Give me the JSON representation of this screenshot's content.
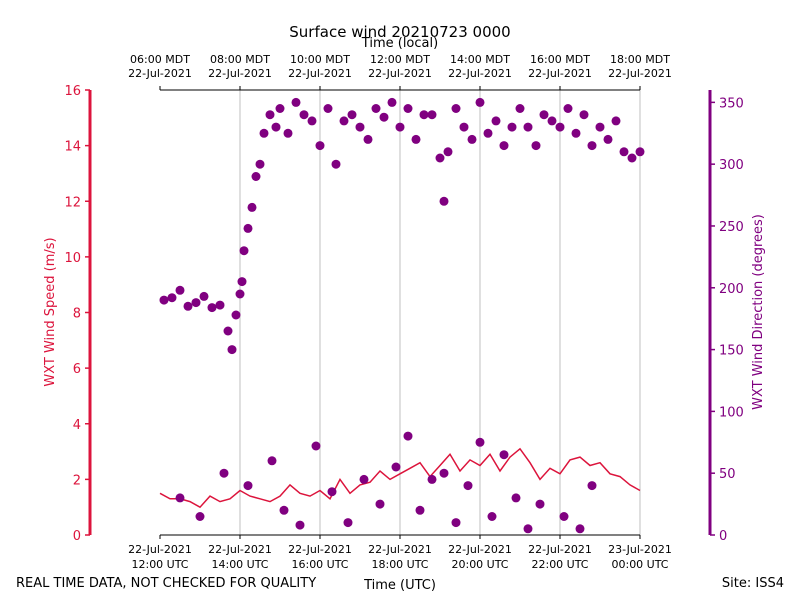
{
  "chart_data": {
    "type": "line+scatter",
    "title": "Surface wind 20210723 0000",
    "top_axis_label": "Time (local)",
    "xlabel": "Time (UTC)",
    "ylabel_left": "WXT Wind Speed (m/s)",
    "ylabel_right": "WXT Wind Direction (degrees)",
    "footer_left": "REAL TIME DATA, NOT CHECKED FOR QUALITY",
    "footer_right": "Site: ISS4",
    "xlim_hours_utc": [
      12,
      24
    ],
    "ylim_left": [
      0,
      16
    ],
    "ylim_right": [
      0,
      360
    ],
    "left_ticks": [
      "0",
      "2",
      "4",
      "6",
      "8",
      "10",
      "12",
      "14",
      "16"
    ],
    "right_ticks": [
      "0",
      "50",
      "100",
      "150",
      "200",
      "250",
      "300",
      "350"
    ],
    "bottom_ticks": [
      {
        "line1": "22-Jul-2021",
        "line2": "12:00 UTC"
      },
      {
        "line1": "22-Jul-2021",
        "line2": "14:00 UTC"
      },
      {
        "line1": "22-Jul-2021",
        "line2": "16:00 UTC"
      },
      {
        "line1": "22-Jul-2021",
        "line2": "18:00 UTC"
      },
      {
        "line1": "22-Jul-2021",
        "line2": "20:00 UTC"
      },
      {
        "line1": "22-Jul-2021",
        "line2": "22:00 UTC"
      },
      {
        "line1": "23-Jul-2021",
        "line2": "00:00 UTC"
      }
    ],
    "top_ticks": [
      {
        "line1": "06:00 MDT",
        "line2": "22-Jul-2021"
      },
      {
        "line1": "08:00 MDT",
        "line2": "22-Jul-2021"
      },
      {
        "line1": "10:00 MDT",
        "line2": "22-Jul-2021"
      },
      {
        "line1": "12:00 MDT",
        "line2": "22-Jul-2021"
      },
      {
        "line1": "14:00 MDT",
        "line2": "22-Jul-2021"
      },
      {
        "line1": "16:00 MDT",
        "line2": "22-Jul-2021"
      },
      {
        "line1": "18:00 MDT",
        "line2": "22-Jul-2021"
      }
    ],
    "colors": {
      "speed": "#dc143c",
      "direction": "#800080",
      "grid": "#b0b0b0"
    },
    "series": [
      {
        "name": "WXT Wind Speed",
        "kind": "line",
        "axis": "left",
        "x_hours_utc": [
          12.0,
          12.25,
          12.5,
          12.75,
          13.0,
          13.25,
          13.5,
          13.75,
          14.0,
          14.25,
          14.5,
          14.75,
          15.0,
          15.25,
          15.5,
          15.75,
          16.0,
          16.25,
          16.5,
          16.75,
          17.0,
          17.25,
          17.5,
          17.75,
          18.0,
          18.25,
          18.5,
          18.75,
          19.0,
          19.25,
          19.5,
          19.75,
          20.0,
          20.25,
          20.5,
          20.75,
          21.0,
          21.25,
          21.5,
          21.75,
          22.0,
          22.25,
          22.5,
          22.75,
          23.0,
          23.25,
          23.5,
          23.75,
          24.0
        ],
        "values": [
          1.5,
          1.3,
          1.3,
          1.2,
          1.0,
          1.4,
          1.2,
          1.3,
          1.6,
          1.4,
          1.3,
          1.2,
          1.4,
          1.8,
          1.5,
          1.4,
          1.6,
          1.3,
          2.0,
          1.5,
          1.8,
          1.9,
          2.3,
          2.0,
          2.2,
          2.4,
          2.6,
          2.1,
          2.5,
          2.9,
          2.3,
          2.7,
          2.5,
          2.9,
          2.3,
          2.8,
          3.1,
          2.6,
          2.0,
          2.4,
          2.2,
          2.7,
          2.8,
          2.5,
          2.6,
          2.2,
          2.1,
          1.8,
          1.6
        ]
      },
      {
        "name": "WXT Wind Direction",
        "kind": "scatter",
        "axis": "right",
        "points": [
          [
            12.1,
            190
          ],
          [
            12.3,
            192
          ],
          [
            12.5,
            198
          ],
          [
            12.7,
            185
          ],
          [
            12.9,
            188
          ],
          [
            13.1,
            193
          ],
          [
            13.3,
            184
          ],
          [
            13.5,
            186
          ],
          [
            13.7,
            165
          ],
          [
            13.8,
            150
          ],
          [
            13.9,
            178
          ],
          [
            14.0,
            195
          ],
          [
            14.05,
            205
          ],
          [
            14.1,
            230
          ],
          [
            14.2,
            248
          ],
          [
            14.3,
            265
          ],
          [
            14.4,
            290
          ],
          [
            14.5,
            300
          ],
          [
            14.6,
            325
          ],
          [
            14.75,
            340
          ],
          [
            14.9,
            330
          ],
          [
            15.0,
            345
          ],
          [
            15.2,
            325
          ],
          [
            15.4,
            350
          ],
          [
            15.6,
            340
          ],
          [
            15.8,
            335
          ],
          [
            16.0,
            315
          ],
          [
            16.2,
            345
          ],
          [
            16.4,
            300
          ],
          [
            16.6,
            335
          ],
          [
            16.8,
            340
          ],
          [
            17.0,
            330
          ],
          [
            17.2,
            320
          ],
          [
            17.4,
            345
          ],
          [
            17.6,
            338
          ],
          [
            17.8,
            350
          ],
          [
            18.0,
            330
          ],
          [
            18.2,
            345
          ],
          [
            18.4,
            320
          ],
          [
            18.6,
            340
          ],
          [
            18.8,
            340
          ],
          [
            19.0,
            305
          ],
          [
            19.1,
            270
          ],
          [
            19.2,
            310
          ],
          [
            19.4,
            345
          ],
          [
            19.6,
            330
          ],
          [
            19.8,
            320
          ],
          [
            20.0,
            350
          ],
          [
            20.2,
            325
          ],
          [
            20.4,
            335
          ],
          [
            20.6,
            315
          ],
          [
            20.8,
            330
          ],
          [
            21.0,
            345
          ],
          [
            21.2,
            330
          ],
          [
            21.4,
            315
          ],
          [
            21.6,
            340
          ],
          [
            21.8,
            335
          ],
          [
            22.0,
            330
          ],
          [
            22.2,
            345
          ],
          [
            22.4,
            325
          ],
          [
            22.6,
            340
          ],
          [
            22.8,
            315
          ],
          [
            23.0,
            330
          ],
          [
            23.2,
            320
          ],
          [
            23.4,
            335
          ],
          [
            23.6,
            310
          ],
          [
            23.8,
            305
          ],
          [
            24.0,
            310
          ],
          [
            12.5,
            30
          ],
          [
            13.0,
            15
          ],
          [
            13.6,
            50
          ],
          [
            14.2,
            40
          ],
          [
            14.8,
            60
          ],
          [
            15.1,
            20
          ],
          [
            15.5,
            8
          ],
          [
            15.9,
            72
          ],
          [
            16.3,
            35
          ],
          [
            16.7,
            10
          ],
          [
            17.1,
            45
          ],
          [
            17.5,
            25
          ],
          [
            17.9,
            55
          ],
          [
            18.2,
            80
          ],
          [
            18.5,
            20
          ],
          [
            18.8,
            45
          ],
          [
            19.1,
            50
          ],
          [
            19.4,
            10
          ],
          [
            19.7,
            40
          ],
          [
            20.0,
            75
          ],
          [
            20.3,
            15
          ],
          [
            20.6,
            65
          ],
          [
            20.9,
            30
          ],
          [
            21.2,
            5
          ],
          [
            21.5,
            25
          ],
          [
            22.1,
            15
          ],
          [
            22.5,
            5
          ],
          [
            22.8,
            40
          ]
        ]
      }
    ]
  }
}
